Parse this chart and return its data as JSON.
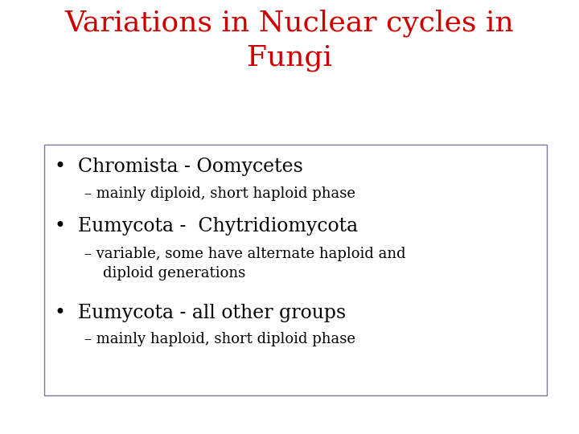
{
  "title_line1": "Variations in Nuclear cycles in",
  "title_line2": "Fungi",
  "title_color": "#cc0000",
  "title_fontsize": 26,
  "bg_color": "#ffffff",
  "box_edge_color": "#7a7a9a",
  "bullet_items": [
    {
      "bullet": "•  Chromista - Oomycetes",
      "bullet_fontsize": 17,
      "sub": "– mainly diploid, short haploid phase",
      "sub_fontsize": 13
    },
    {
      "bullet": "•  Eumycota -  Chytridiomycota",
      "bullet_fontsize": 17,
      "sub": "– variable, some have alternate haploid and\n    diploid generations",
      "sub_fontsize": 13
    },
    {
      "bullet": "•  Eumycota - all other groups",
      "bullet_fontsize": 17,
      "sub": "– mainly haploid, short diploid phase",
      "sub_fontsize": 13
    }
  ],
  "font_family": "DejaVu Serif"
}
